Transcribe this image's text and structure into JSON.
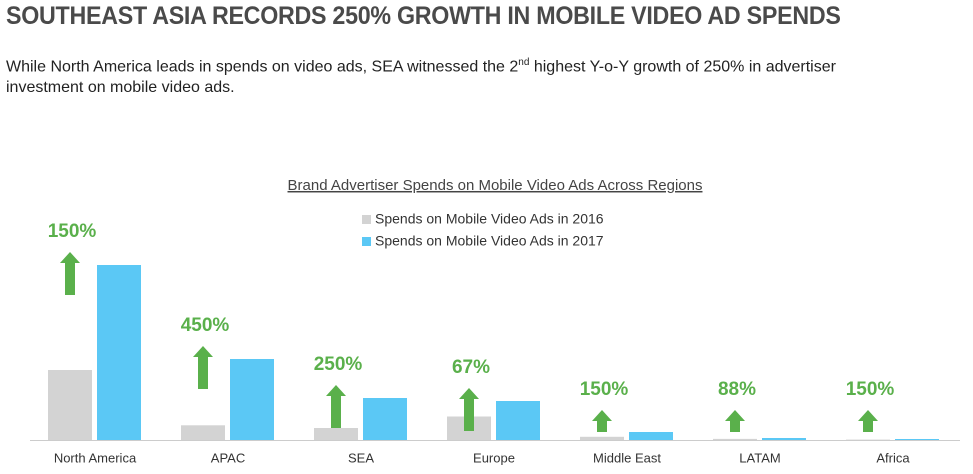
{
  "header": {
    "title": "SOUTHEAST ASIA RECORDS 250% GROWTH IN MOBILE VIDEO AD SPENDS",
    "subtitle_parts": [
      "While North America leads in spends on video ads, SEA witnessed the 2",
      "nd",
      " highest Y-o-Y growth of 250% in advertiser investment on mobile video ads."
    ]
  },
  "chart_data": {
    "type": "bar",
    "title": "Brand Advertiser Spends on Mobile Video Ads Across Regions",
    "categories": [
      "North America",
      "APAC",
      "SEA",
      "Europe",
      "Middle East",
      "LATAM",
      "Africa"
    ],
    "series": [
      {
        "name": "Spends on Mobile Video Ads in 2016",
        "color": "#d3d3d3",
        "values": [
          70,
          14.7,
          12,
          23.5,
          3.2,
          1.1,
          0.4
        ]
      },
      {
        "name": "Spends on Mobile Video Ads in 2017",
        "color": "#5bc8f5",
        "values": [
          175,
          81,
          42,
          39,
          8,
          2,
          1
        ]
      }
    ],
    "growth": {
      "color": "#5ab04b",
      "values": [
        150,
        450,
        250,
        67,
        150,
        88,
        150
      ],
      "value_labels": [
        "150%",
        "450%",
        "250%",
        "67%",
        "150%",
        "88%",
        "150%"
      ]
    }
  }
}
